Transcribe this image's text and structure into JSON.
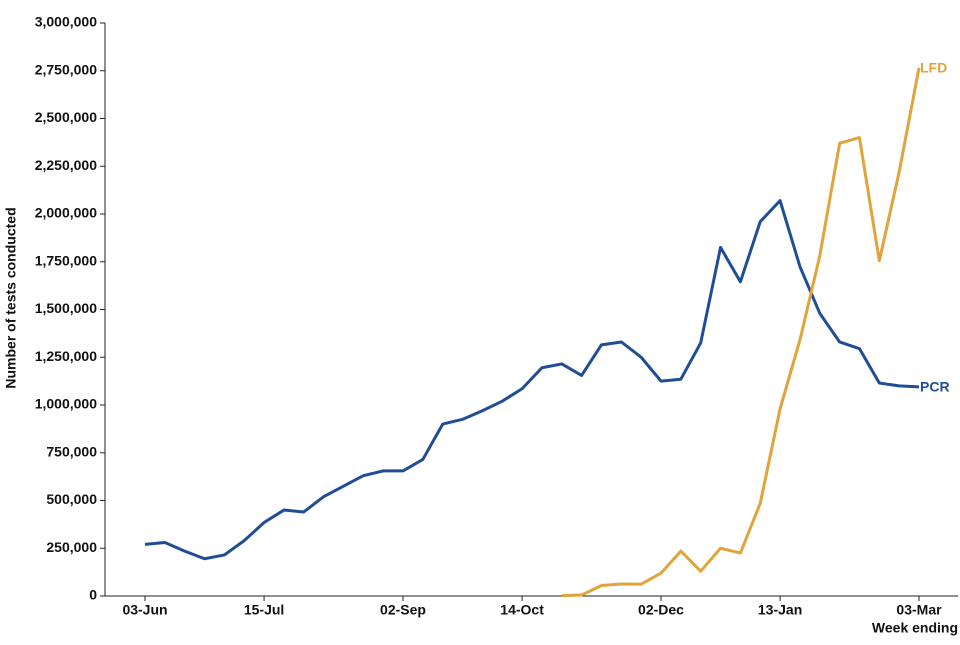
{
  "chart_data": {
    "type": "line",
    "y_label": "Number of tests conducted",
    "x_label": "Week ending",
    "categories": [
      "03-Jun",
      null,
      null,
      null,
      null,
      null,
      "15-Jul",
      null,
      null,
      null,
      null,
      null,
      null,
      "02-Sep",
      null,
      null,
      null,
      null,
      null,
      "14-Oct",
      null,
      null,
      null,
      null,
      null,
      null,
      "02-Dec",
      null,
      null,
      null,
      null,
      null,
      "13-Jan",
      null,
      null,
      null,
      null,
      null,
      null,
      "03-Mar"
    ],
    "series": [
      {
        "name": "PCR",
        "color": "#1f4e96",
        "values": [
          270000,
          280000,
          235000,
          195000,
          215000,
          290000,
          385000,
          450000,
          440000,
          520000,
          575000,
          630000,
          655000,
          655000,
          715000,
          900000,
          925000,
          970000,
          1020000,
          1085000,
          1195000,
          1215000,
          1155000,
          1315000,
          1330000,
          1250000,
          1125000,
          1135000,
          1325000,
          1825000,
          1645000,
          1960000,
          2070000,
          1725000,
          1480000,
          1330000,
          1295000,
          1115000,
          1100000,
          1095000
        ]
      },
      {
        "name": "LFD",
        "color": "#e0a43a",
        "values": [
          null,
          null,
          null,
          null,
          null,
          null,
          null,
          null,
          null,
          null,
          null,
          null,
          null,
          null,
          null,
          null,
          null,
          null,
          null,
          null,
          null,
          2000,
          5000,
          55000,
          63000,
          62000,
          120000,
          235000,
          130000,
          250000,
          225000,
          485000,
          980000,
          1340000,
          1780000,
          2370000,
          2400000,
          1755000,
          2220000,
          2765000
        ]
      }
    ],
    "ylim": [
      0,
      3000000
    ],
    "yticks": [
      0,
      {
        "value": 250000,
        "label": "250,000"
      },
      {
        "value": 500000,
        "label": "500,000"
      },
      {
        "value": 750000,
        "label": "750,000"
      },
      {
        "value": 1000000,
        "label": "1,000,000"
      },
      {
        "value": 1250000,
        "label": "1,250,000"
      },
      {
        "value": 1500000,
        "label": "1,500,000"
      },
      {
        "value": 1750000,
        "label": "1,750,000"
      },
      {
        "value": 2000000,
        "label": "2,000,000"
      },
      {
        "value": 2250000,
        "label": "2,250,000"
      },
      {
        "value": 2500000,
        "label": "2,500,000"
      },
      {
        "value": 2750000,
        "label": "2,750,000"
      },
      {
        "value": 3000000,
        "label": "3,000,000"
      }
    ],
    "grid": false,
    "legend": "line-end"
  }
}
